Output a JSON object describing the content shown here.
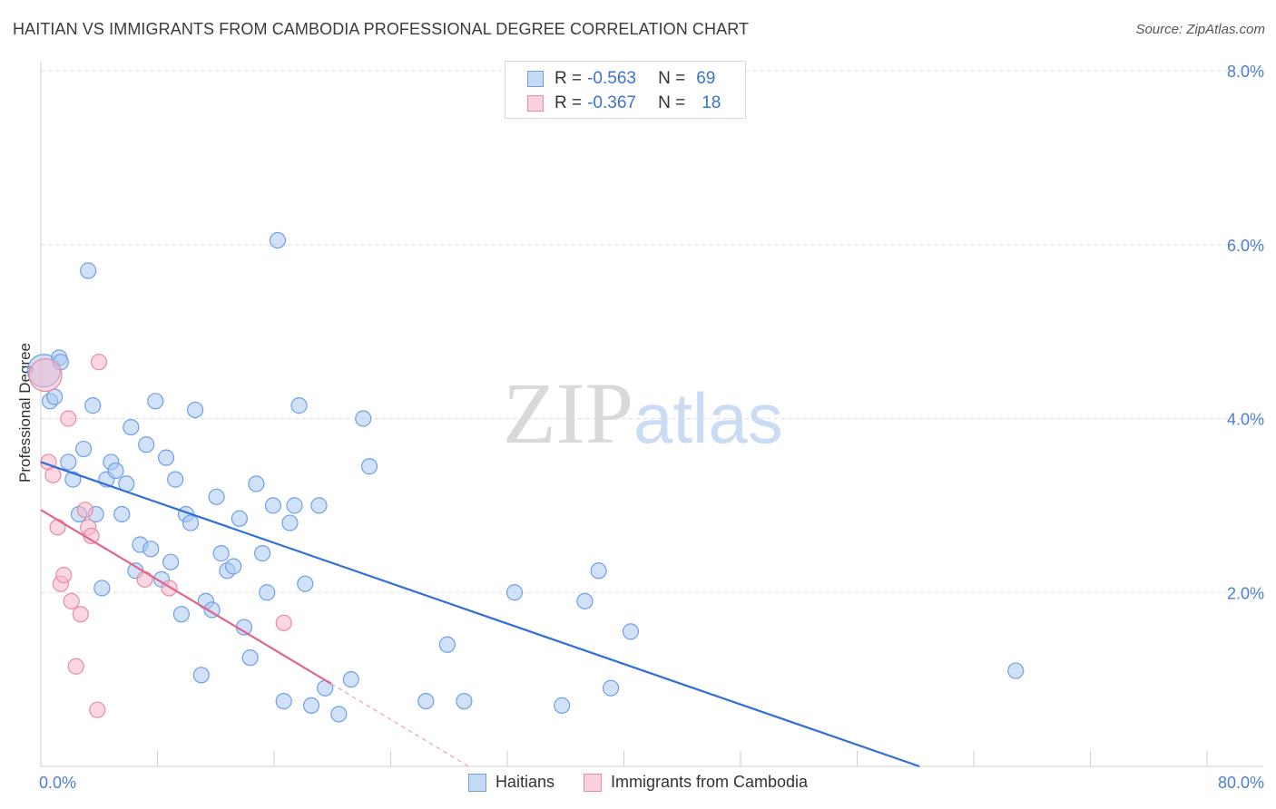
{
  "header": {
    "title": "HAITIAN VS IMMIGRANTS FROM CAMBODIA PROFESSIONAL DEGREE CORRELATION CHART",
    "source": "Source: ZipAtlas.com"
  },
  "watermark": {
    "zip": "ZIP",
    "atlas": "atlas"
  },
  "legend_top": {
    "rows": [
      {
        "r_label": "R =",
        "r_value": "-0.563",
        "n_label": "N =",
        "n_value": "69",
        "color": "#a9c8f2"
      },
      {
        "r_label": "R =",
        "r_value": "-0.367",
        "n_label": "N =",
        "n_value": "18",
        "color": "#f6b6c8"
      }
    ]
  },
  "legend_bottom": {
    "items": [
      {
        "label": "Haitians",
        "color": "#a9c8f2"
      },
      {
        "label": "Immigrants from Cambodia",
        "color": "#f6b6c8"
      }
    ]
  },
  "chart_data": {
    "type": "scatter",
    "title": "HAITIAN VS IMMIGRANTS FROM CAMBODIA PROFESSIONAL DEGREE CORRELATION CHART",
    "xlabel": "",
    "ylabel": "Professional Degree",
    "xlim": [
      0,
      80
    ],
    "ylim": [
      0,
      8
    ],
    "x_tick_labels": [
      "0.0%",
      "80.0%"
    ],
    "y_ticks": [
      2,
      4,
      6,
      8
    ],
    "y_tick_labels": [
      "2.0%",
      "4.0%",
      "6.0%",
      "8.0%"
    ],
    "grid": "horizontal dashed",
    "legend_position": "top-center",
    "series": [
      {
        "name": "Haitians",
        "color": "#6fa0e6",
        "fill": "#a9c8f2",
        "trend": {
          "x": [
            0,
            57.5
          ],
          "y": [
            3.5,
            0
          ]
        },
        "points": [
          [
            0.2,
            4.55
          ],
          [
            0.6,
            4.2
          ],
          [
            0.9,
            4.25
          ],
          [
            1.2,
            4.7
          ],
          [
            1.3,
            4.65
          ],
          [
            1.8,
            3.5
          ],
          [
            2.1,
            3.3
          ],
          [
            2.5,
            2.9
          ],
          [
            2.8,
            3.65
          ],
          [
            3.1,
            5.7
          ],
          [
            3.4,
            4.15
          ],
          [
            3.6,
            2.9
          ],
          [
            4.0,
            2.05
          ],
          [
            4.3,
            3.3
          ],
          [
            4.6,
            3.5
          ],
          [
            4.9,
            3.4
          ],
          [
            5.3,
            2.9
          ],
          [
            5.6,
            3.25
          ],
          [
            5.9,
            3.9
          ],
          [
            6.2,
            2.25
          ],
          [
            6.5,
            2.55
          ],
          [
            6.9,
            3.7
          ],
          [
            7.2,
            2.5
          ],
          [
            7.5,
            4.2
          ],
          [
            7.9,
            2.15
          ],
          [
            8.2,
            3.55
          ],
          [
            8.5,
            2.35
          ],
          [
            8.8,
            3.3
          ],
          [
            9.2,
            1.75
          ],
          [
            9.5,
            2.9
          ],
          [
            9.8,
            2.8
          ],
          [
            10.1,
            4.1
          ],
          [
            10.5,
            1.05
          ],
          [
            10.8,
            1.9
          ],
          [
            11.2,
            1.8
          ],
          [
            11.5,
            3.1
          ],
          [
            11.8,
            2.45
          ],
          [
            12.2,
            2.25
          ],
          [
            12.6,
            2.3
          ],
          [
            13.0,
            2.85
          ],
          [
            13.3,
            1.6
          ],
          [
            13.7,
            1.25
          ],
          [
            14.1,
            3.25
          ],
          [
            14.5,
            2.45
          ],
          [
            14.8,
            2.0
          ],
          [
            15.2,
            3.0
          ],
          [
            15.5,
            6.05
          ],
          [
            15.9,
            0.75
          ],
          [
            16.3,
            2.8
          ],
          [
            16.6,
            3.0
          ],
          [
            16.9,
            4.15
          ],
          [
            17.3,
            2.1
          ],
          [
            17.7,
            0.7
          ],
          [
            18.2,
            3.0
          ],
          [
            18.6,
            0.9
          ],
          [
            19.5,
            0.6
          ],
          [
            20.3,
            1.0
          ],
          [
            21.1,
            4.0
          ],
          [
            21.5,
            3.45
          ],
          [
            25.2,
            0.75
          ],
          [
            26.6,
            1.4
          ],
          [
            27.7,
            0.75
          ],
          [
            31.0,
            2.0
          ],
          [
            34.1,
            0.7
          ],
          [
            35.6,
            1.9
          ],
          [
            36.5,
            2.25
          ],
          [
            37.3,
            0.9
          ],
          [
            38.6,
            1.55
          ],
          [
            63.8,
            1.1
          ]
        ]
      },
      {
        "name": "Immigrants from Cambodia",
        "color": "#e98aa6",
        "fill": "#f6b6c8",
        "trend": {
          "x": [
            0,
            19
          ],
          "y": [
            2.95,
            0.95
          ]
        },
        "trend_extension": {
          "x": [
            19,
            28
          ],
          "y": [
            0.95,
            0.0
          ]
        },
        "points": [
          [
            0.3,
            4.5
          ],
          [
            0.5,
            3.5
          ],
          [
            0.8,
            3.35
          ],
          [
            1.1,
            2.75
          ],
          [
            1.3,
            2.1
          ],
          [
            1.5,
            2.2
          ],
          [
            1.8,
            4.0
          ],
          [
            2.0,
            1.9
          ],
          [
            2.3,
            1.15
          ],
          [
            2.6,
            1.75
          ],
          [
            2.9,
            2.95
          ],
          [
            3.1,
            2.75
          ],
          [
            3.3,
            2.65
          ],
          [
            3.7,
            0.65
          ],
          [
            3.8,
            4.65
          ],
          [
            6.8,
            2.15
          ],
          [
            8.4,
            2.05
          ],
          [
            15.9,
            1.65
          ]
        ]
      }
    ]
  }
}
